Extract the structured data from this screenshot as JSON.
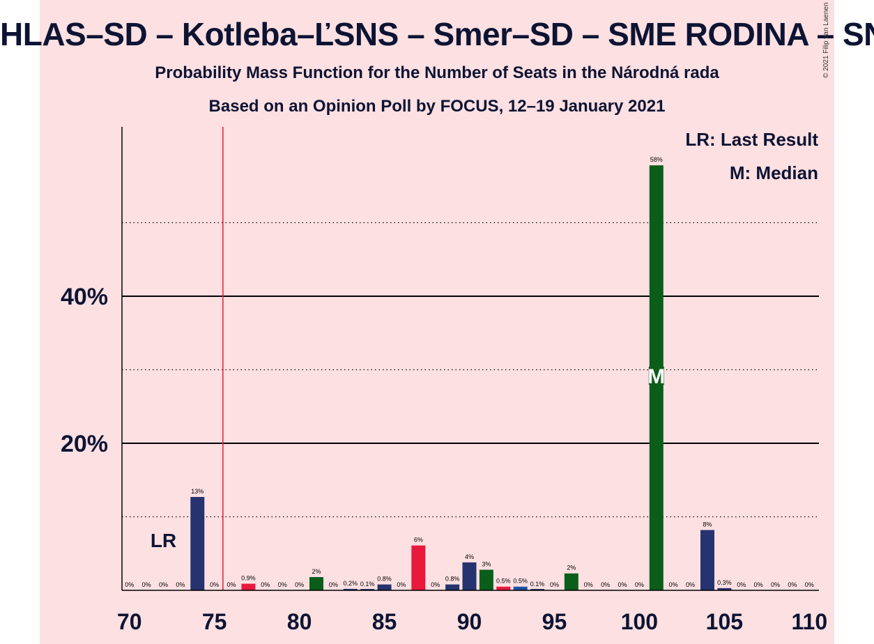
{
  "title": "HLAS–SD – Kotleba–ĽSNS – Smer–SD – SME RODINA – SNS",
  "subtitle1": "Probability Mass Function for the Number of Seats in the Národná rada",
  "subtitle2": "Based on an Opinion Poll by FOCUS, 12–19 January 2021",
  "copyright": "© 2021 Filip van Laenen",
  "legend": {
    "last_result": "LR: Last Result",
    "median": "M: Median"
  },
  "colors": {
    "background": "#fde0e2",
    "navy": "#25336e",
    "red": "#e8193c",
    "green": "#0b5e1a",
    "blue": "#1f4fa3",
    "threshold": "#e8193c",
    "text": "#0d1433"
  },
  "chart_data": {
    "type": "bar",
    "xlim": [
      70,
      110
    ],
    "ylim": [
      0,
      63
    ],
    "x_ticks": [
      70,
      75,
      80,
      85,
      90,
      95,
      100,
      105,
      110
    ],
    "y_ticks_labeled": [
      {
        "value": 20,
        "label": "20%"
      },
      {
        "value": 40,
        "label": "40%"
      }
    ],
    "y_gridlines_solid": [
      20,
      40
    ],
    "y_gridlines_dotted": [
      10,
      30,
      50
    ],
    "majority_threshold": 75.5,
    "last_result": {
      "x": 72,
      "label": "LR"
    },
    "median": {
      "x": 101,
      "label": "M"
    },
    "bars": [
      {
        "x": 70,
        "value": 0,
        "label": "0%",
        "color": "navy"
      },
      {
        "x": 71,
        "value": 0,
        "label": "0%",
        "color": "navy"
      },
      {
        "x": 72,
        "value": 0,
        "label": "0%",
        "color": "navy"
      },
      {
        "x": 73,
        "value": 0,
        "label": "0%",
        "color": "navy"
      },
      {
        "x": 74,
        "value": 12.7,
        "label": "13%",
        "color": "navy"
      },
      {
        "x": 75,
        "value": 0,
        "label": "0%",
        "color": "navy"
      },
      {
        "x": 76,
        "value": 0,
        "label": "0%",
        "color": "navy"
      },
      {
        "x": 77,
        "value": 0.9,
        "label": "0.9%",
        "color": "red"
      },
      {
        "x": 78,
        "value": 0,
        "label": "0%",
        "color": "navy"
      },
      {
        "x": 79,
        "value": 0,
        "label": "0%",
        "color": "navy"
      },
      {
        "x": 80,
        "value": 0,
        "label": "0%",
        "color": "navy"
      },
      {
        "x": 81,
        "value": 1.8,
        "label": "2%",
        "color": "green"
      },
      {
        "x": 82,
        "value": 0,
        "label": "0%",
        "color": "navy"
      },
      {
        "x": 83,
        "value": 0.2,
        "label": "0.2%",
        "color": "navy"
      },
      {
        "x": 84,
        "value": 0.1,
        "label": "0.1%",
        "color": "navy"
      },
      {
        "x": 85,
        "value": 0.8,
        "label": "0.8%",
        "color": "navy"
      },
      {
        "x": 86,
        "value": 0,
        "label": "0%",
        "color": "navy"
      },
      {
        "x": 87,
        "value": 6.1,
        "label": "6%",
        "color": "red"
      },
      {
        "x": 88,
        "value": 0,
        "label": "0%",
        "color": "navy"
      },
      {
        "x": 89,
        "value": 0.8,
        "label": "0.8%",
        "color": "navy"
      },
      {
        "x": 90,
        "value": 3.8,
        "label": "4%",
        "color": "navy"
      },
      {
        "x": 91,
        "value": 2.8,
        "label": "3%",
        "color": "green"
      },
      {
        "x": 92,
        "value": 0.5,
        "label": "0.5%",
        "color": "red"
      },
      {
        "x": 93,
        "value": 0.5,
        "label": "0.5%",
        "color": "blue"
      },
      {
        "x": 94,
        "value": 0.1,
        "label": "0.1%",
        "color": "navy"
      },
      {
        "x": 95,
        "value": 0,
        "label": "0%",
        "color": "navy"
      },
      {
        "x": 96,
        "value": 2.3,
        "label": "2%",
        "color": "green"
      },
      {
        "x": 97,
        "value": 0,
        "label": "0%",
        "color": "navy"
      },
      {
        "x": 98,
        "value": 0,
        "label": "0%",
        "color": "navy"
      },
      {
        "x": 99,
        "value": 0,
        "label": "0%",
        "color": "navy"
      },
      {
        "x": 100,
        "value": 0,
        "label": "0%",
        "color": "navy"
      },
      {
        "x": 101,
        "value": 57.8,
        "label": "58%",
        "color": "green"
      },
      {
        "x": 102,
        "value": 0,
        "label": "0%",
        "color": "navy"
      },
      {
        "x": 103,
        "value": 0,
        "label": "0%",
        "color": "navy"
      },
      {
        "x": 104,
        "value": 8.2,
        "label": "8%",
        "color": "navy"
      },
      {
        "x": 105,
        "value": 0.3,
        "label": "0.3%",
        "color": "navy"
      },
      {
        "x": 106,
        "value": 0,
        "label": "0%",
        "color": "navy"
      },
      {
        "x": 107,
        "value": 0,
        "label": "0%",
        "color": "navy"
      },
      {
        "x": 108,
        "value": 0,
        "label": "0%",
        "color": "navy"
      },
      {
        "x": 109,
        "value": 0,
        "label": "0%",
        "color": "navy"
      },
      {
        "x": 110,
        "value": 0,
        "label": "0%",
        "color": "navy"
      }
    ]
  }
}
